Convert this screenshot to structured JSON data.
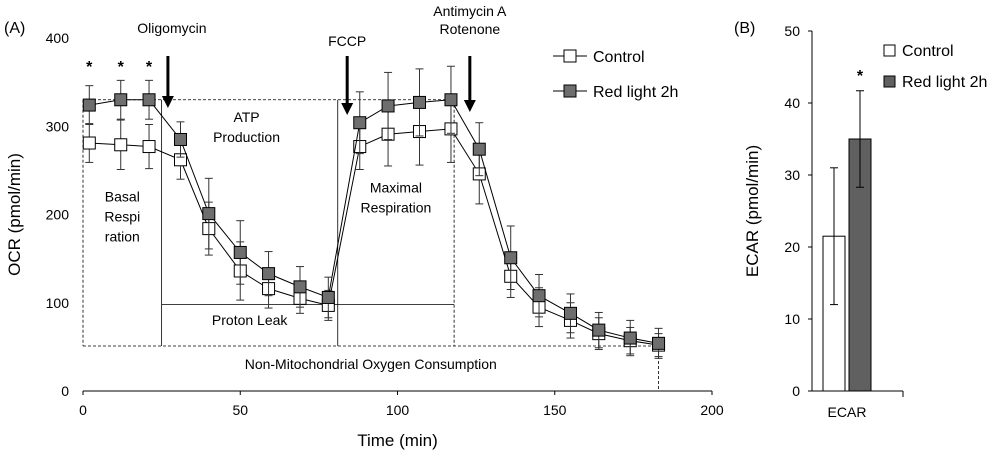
{
  "chart_data": [
    {
      "panel_label": "(A)",
      "type": "line",
      "xlabel": "Time (min)",
      "ylabel": "OCR (pmol/min)",
      "xlim": [
        0,
        200
      ],
      "ylim": [
        0,
        400
      ],
      "xticks": [
        "0",
        "50",
        "100",
        "150",
        "200"
      ],
      "yticks": [
        "0",
        "100",
        "200",
        "300",
        "400"
      ],
      "legend": {
        "placement": "top-right"
      },
      "x": [
        2,
        12,
        21,
        31,
        40,
        50,
        59,
        69,
        78,
        88,
        97,
        107,
        117,
        126,
        136,
        145,
        155,
        164,
        174,
        183
      ],
      "series": [
        {
          "name": "Control",
          "marker": "open-square",
          "values": [
            281,
            279,
            277,
            262,
            184,
            136,
            116,
            105,
            97,
            277,
            291,
            294,
            297,
            246,
            130,
            95,
            80,
            65,
            57,
            52
          ],
          "errors": [
            22,
            28,
            25,
            22,
            30,
            33,
            22,
            17,
            17,
            26,
            36,
            38,
            38,
            34,
            24,
            22,
            20,
            18,
            15,
            13
          ]
        },
        {
          "name": "Red light 2h",
          "marker": "filled-square",
          "values": [
            324,
            330,
            330,
            285,
            201,
            157,
            133,
            118,
            106,
            304,
            323,
            327,
            330,
            274,
            151,
            108,
            88,
            69,
            60,
            54
          ],
          "errors": [
            22,
            22,
            22,
            20,
            40,
            36,
            25,
            23,
            23,
            35,
            38,
            38,
            38,
            30,
            36,
            24,
            22,
            20,
            20,
            17
          ]
        }
      ],
      "significance": {
        "symbol": "*",
        "x": [
          2,
          12,
          21
        ]
      },
      "injections": [
        {
          "label": [
            "Oligomycin"
          ],
          "x": 27
        },
        {
          "label": [
            "FCCP"
          ],
          "x": 84
        },
        {
          "label": [
            "Antimycin A",
            "Rotenone"
          ],
          "x": 123
        }
      ],
      "regions": [
        {
          "label": [
            "Basal",
            "Respi",
            "ration"
          ],
          "x": [
            0,
            25
          ],
          "y": [
            51,
            330
          ]
        },
        {
          "label": [
            "ATP",
            "Production"
          ],
          "x": [
            25,
            81
          ],
          "y": [
            98,
            330
          ]
        },
        {
          "label": [
            "Proton Leak"
          ],
          "x": [
            25,
            81
          ],
          "y": [
            51,
            98
          ]
        },
        {
          "label": [
            "Maximal",
            "Respiration"
          ],
          "x": [
            81,
            118
          ],
          "y": [
            98,
            330
          ]
        },
        {
          "label": [
            "Non-Mitochondrial Oxygen Consumption"
          ],
          "x": [
            0,
            183
          ],
          "y": [
            0,
            51
          ]
        }
      ]
    },
    {
      "panel_label": "(B)",
      "type": "bar",
      "xlabel": "",
      "ylabel": "ECAR (pmol/min)",
      "ylim": [
        0,
        50
      ],
      "yticks": [
        "0",
        "10",
        "20",
        "30",
        "40",
        "50"
      ],
      "categories": [
        "ECAR"
      ],
      "legend": {
        "placement": "top-right"
      },
      "series": [
        {
          "name": "Control",
          "color": "#ffffff",
          "values": [
            21.5
          ],
          "errors": [
            9.5
          ]
        },
        {
          "name": "Red light 2h",
          "color": "#606060",
          "values": [
            35
          ],
          "errors": [
            6.7
          ]
        }
      ],
      "significance": {
        "symbol": "*",
        "series": "Red light 2h"
      }
    }
  ]
}
